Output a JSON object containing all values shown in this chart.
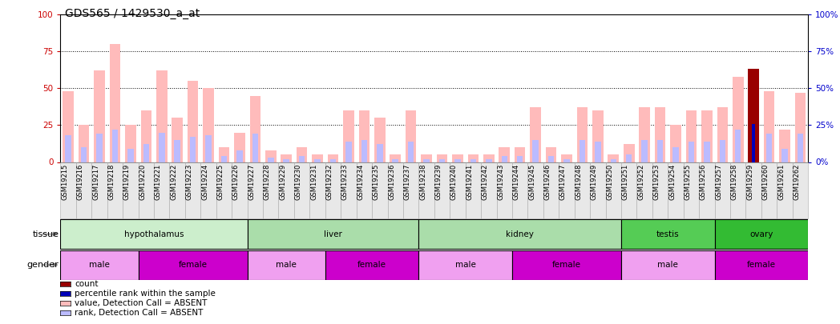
{
  "title": "GDS565 / 1429530_a_at",
  "samples": [
    "GSM19215",
    "GSM19216",
    "GSM19217",
    "GSM19218",
    "GSM19219",
    "GSM19220",
    "GSM19221",
    "GSM19222",
    "GSM19223",
    "GSM19224",
    "GSM19225",
    "GSM19226",
    "GSM19227",
    "GSM19228",
    "GSM19229",
    "GSM19230",
    "GSM19231",
    "GSM19232",
    "GSM19233",
    "GSM19234",
    "GSM19235",
    "GSM19236",
    "GSM19237",
    "GSM19238",
    "GSM19239",
    "GSM19240",
    "GSM19241",
    "GSM19242",
    "GSM19243",
    "GSM19244",
    "GSM19245",
    "GSM19246",
    "GSM19247",
    "GSM19248",
    "GSM19249",
    "GSM19250",
    "GSM19251",
    "GSM19252",
    "GSM19253",
    "GSM19254",
    "GSM19255",
    "GSM19256",
    "GSM19257",
    "GSM19258",
    "GSM19259",
    "GSM19260",
    "GSM19261",
    "GSM19262"
  ],
  "value_absent": [
    48,
    25,
    62,
    80,
    25,
    35,
    62,
    30,
    55,
    50,
    10,
    20,
    45,
    8,
    5,
    10,
    5,
    5,
    35,
    35,
    30,
    5,
    35,
    5,
    5,
    5,
    5,
    5,
    10,
    10,
    37,
    10,
    5,
    37,
    35,
    5,
    12,
    37,
    37,
    25,
    35,
    35,
    37,
    58,
    63,
    48,
    22,
    47
  ],
  "rank_absent": [
    18,
    10,
    19,
    22,
    9,
    12,
    20,
    15,
    17,
    18,
    4,
    8,
    19,
    3,
    2,
    4,
    2,
    2,
    14,
    15,
    12,
    2,
    14,
    2,
    2,
    2,
    2,
    2,
    4,
    4,
    15,
    4,
    2,
    15,
    14,
    2,
    5,
    15,
    15,
    10,
    14,
    14,
    15,
    22,
    24,
    19,
    9,
    19
  ],
  "count_bar": [
    0,
    0,
    0,
    0,
    0,
    0,
    0,
    0,
    0,
    0,
    0,
    0,
    0,
    0,
    0,
    0,
    0,
    0,
    0,
    0,
    0,
    0,
    0,
    0,
    0,
    0,
    0,
    0,
    0,
    0,
    0,
    0,
    0,
    0,
    0,
    0,
    0,
    0,
    0,
    0,
    0,
    0,
    0,
    0,
    63,
    0,
    0,
    0
  ],
  "rank_present": [
    0,
    0,
    0,
    0,
    0,
    0,
    0,
    0,
    0,
    0,
    0,
    0,
    0,
    0,
    0,
    0,
    0,
    0,
    0,
    0,
    0,
    0,
    0,
    0,
    0,
    0,
    0,
    0,
    0,
    0,
    0,
    0,
    0,
    0,
    0,
    0,
    0,
    0,
    0,
    0,
    0,
    0,
    0,
    0,
    26,
    0,
    0,
    0
  ],
  "tissues": [
    {
      "name": "hypothalamus",
      "start": 0,
      "end": 12,
      "color": "#cceecc"
    },
    {
      "name": "liver",
      "start": 12,
      "end": 23,
      "color": "#aaddaa"
    },
    {
      "name": "kidney",
      "start": 23,
      "end": 36,
      "color": "#aaddaa"
    },
    {
      "name": "testis",
      "start": 36,
      "end": 42,
      "color": "#44cc44"
    },
    {
      "name": "ovary",
      "start": 42,
      "end": 48,
      "color": "#33bb33"
    }
  ],
  "genders": [
    {
      "name": "male",
      "start": 0,
      "end": 5,
      "color": "#ee99ee"
    },
    {
      "name": "female",
      "start": 5,
      "end": 12,
      "color": "#cc22cc"
    },
    {
      "name": "male",
      "start": 12,
      "end": 17,
      "color": "#ee99ee"
    },
    {
      "name": "female",
      "start": 17,
      "end": 23,
      "color": "#cc22cc"
    },
    {
      "name": "male",
      "start": 23,
      "end": 29,
      "color": "#ee99ee"
    },
    {
      "name": "female",
      "start": 29,
      "end": 36,
      "color": "#cc22cc"
    },
    {
      "name": "male",
      "start": 36,
      "end": 42,
      "color": "#ee99ee"
    },
    {
      "name": "female",
      "start": 42,
      "end": 48,
      "color": "#cc22cc"
    }
  ],
  "ylim": [
    0,
    100
  ],
  "yticks": [
    0,
    25,
    50,
    75,
    100
  ],
  "bar_width": 0.7,
  "color_value_absent": "#ffbbbb",
  "color_rank_absent": "#bbbbff",
  "color_count": "#990000",
  "color_rank_present": "#0000bb",
  "color_left_ticks": "#cc0000",
  "color_right_ticks": "#0000cc",
  "title_fontsize": 10,
  "tick_label_fontsize": 6,
  "annotation_fontsize": 7.5,
  "legend_fontsize": 7.5
}
